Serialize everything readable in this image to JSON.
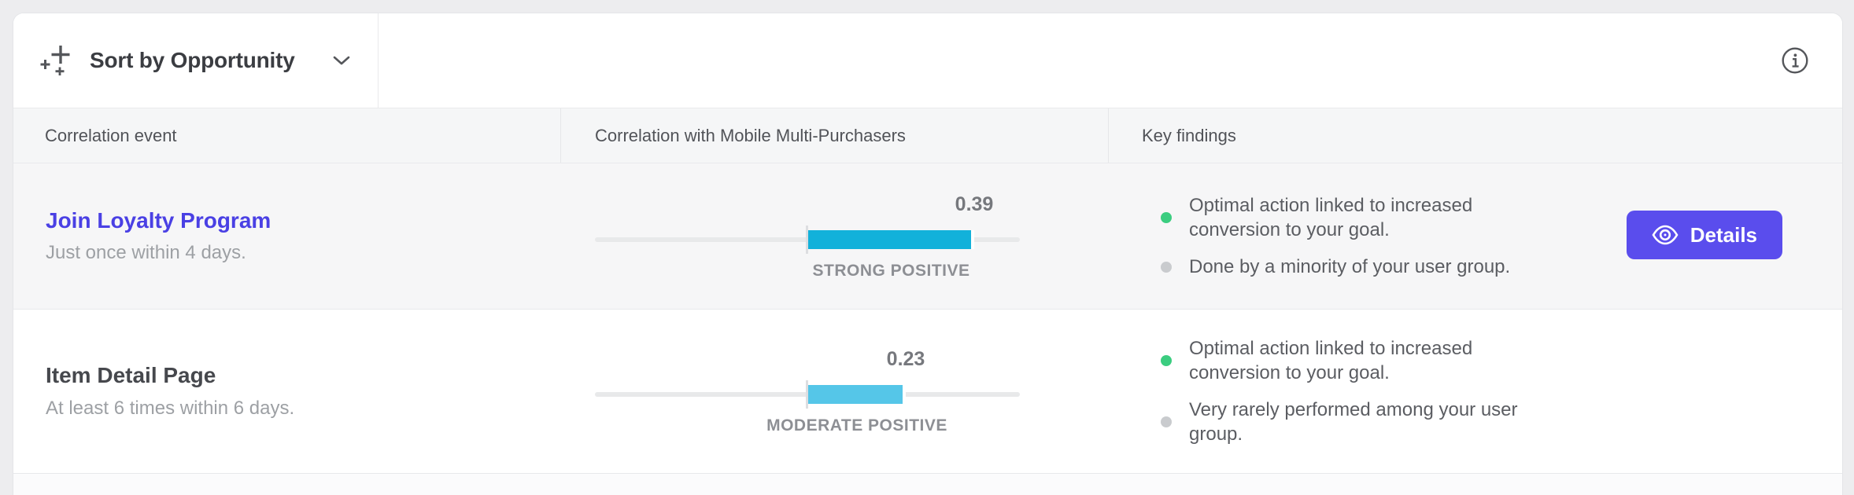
{
  "toolbar": {
    "sort_label": "Sort by Opportunity"
  },
  "table": {
    "columns": [
      {
        "label": "Correlation event"
      },
      {
        "label": "Correlation with Mobile Multi-Purchasers"
      },
      {
        "label": "Key findings"
      }
    ]
  },
  "rows": [
    {
      "event": {
        "title": "Join Loyalty Program",
        "subtitle": "Just once within 4 days.",
        "is_link": true
      },
      "correlation": {
        "value": "0.39",
        "numeric": 0.39,
        "scale_max": 0.5,
        "strength_label": "STRONG POSITIVE",
        "bar_color": "#12b1da"
      },
      "findings": [
        {
          "dot_color": "#3bcd80",
          "text": "Optimal action linked to increased conversion to your goal."
        },
        {
          "dot_color": "#c9cbce",
          "text": "Done by a minority of your user group."
        }
      ],
      "action": {
        "label": "Details"
      }
    },
    {
      "event": {
        "title": "Item Detail Page",
        "subtitle": "At least 6 times within 6 days.",
        "is_link": false
      },
      "correlation": {
        "value": "0.23",
        "numeric": 0.23,
        "scale_max": 0.5,
        "strength_label": "MODERATE POSITIVE",
        "bar_color": "#55c6e8"
      },
      "findings": [
        {
          "dot_color": "#3bcd80",
          "text": "Optimal action linked to increased conversion to your goal."
        },
        {
          "dot_color": "#c9cbce",
          "text": "Very rarely performed among your user group."
        }
      ]
    }
  ],
  "colors": {
    "accent_button": "#5a4ded",
    "link": "#4a40e4",
    "bar_strong": "#12b1da",
    "bar_moderate": "#55c6e8",
    "positive_dot": "#3bcd80",
    "neutral_dot": "#c9cbce"
  }
}
